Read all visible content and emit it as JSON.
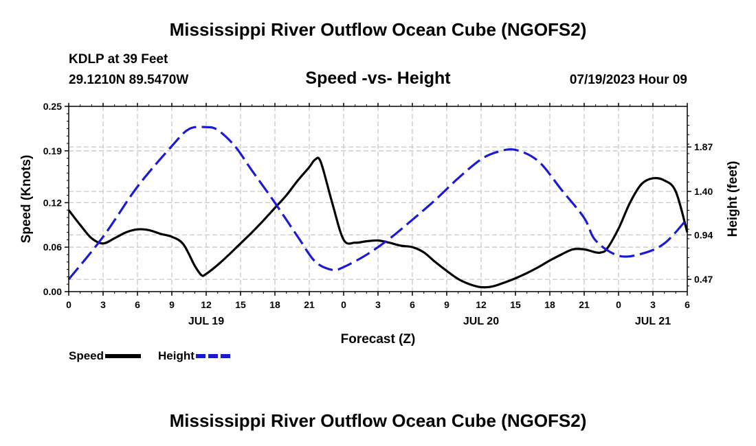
{
  "header": {
    "title": "Mississippi River Outflow Ocean Cube (NGOFS2)",
    "station": "KDLP at 39 Feet",
    "coords": "29.1210N  89.5470W",
    "subtitle": "Speed -vs- Height",
    "datetime": "07/19/2023 Hour 09"
  },
  "footer": {
    "title": "Mississippi River Outflow Ocean Cube (NGOFS2)"
  },
  "legend": {
    "speed_label": "Speed",
    "height_label": "Height"
  },
  "colors": {
    "speed": "#000000",
    "height": "#1a1ad6",
    "grid": "#c8c8c8"
  },
  "chart_data": {
    "type": "line",
    "xlabel": "Forecast (Z)",
    "ylabel_left": "Speed (Knots)",
    "ylabel_right": "Height (feet)",
    "grid": true,
    "xlim": [
      0,
      54
    ],
    "x_tick_values": [
      0,
      3,
      6,
      9,
      12,
      15,
      18,
      21,
      24,
      27,
      30,
      33,
      36,
      39,
      42,
      45,
      48,
      51,
      54
    ],
    "x_tick_labels": [
      "0",
      "3",
      "6",
      "9",
      "12",
      "15",
      "18",
      "21",
      "0",
      "3",
      "6",
      "9",
      "12",
      "15",
      "18",
      "21",
      "0",
      "3",
      "6"
    ],
    "day_labels": [
      {
        "x": 12,
        "label": "JUL 19"
      },
      {
        "x": 36,
        "label": "JUL 20"
      },
      {
        "x": 51,
        "label": "JUL 21"
      }
    ],
    "ylim_left": [
      0,
      0.25
    ],
    "y_left_ticks": [
      0.0,
      0.06,
      0.12,
      0.19,
      0.25
    ],
    "y_left_tick_labels": [
      "0.00",
      "0.06",
      "0.12",
      "0.19",
      "0.25"
    ],
    "ylim_right": [
      0.34,
      2.3
    ],
    "y_right_ticks": [
      0.47,
      0.94,
      1.4,
      1.87
    ],
    "y_right_tick_labels": [
      "0.47",
      "0.94",
      "1.40",
      "1.87"
    ],
    "series": [
      {
        "name": "Speed",
        "axis": "left",
        "style": "solid",
        "x": [
          0,
          1,
          2,
          3,
          4,
          5,
          6,
          7,
          8,
          9,
          10,
          11,
          11.6,
          12,
          13,
          14,
          15,
          16,
          17,
          18,
          19,
          20,
          21,
          21.5,
          22,
          23,
          24,
          25,
          26,
          27,
          28,
          29,
          30,
          31,
          32,
          33,
          34,
          35,
          36,
          37,
          38,
          39,
          40,
          41,
          42,
          43,
          44,
          45,
          46,
          46.5,
          47,
          48,
          49,
          50,
          51,
          52,
          53,
          54
        ],
        "values": [
          0.11,
          0.09,
          0.072,
          0.065,
          0.072,
          0.08,
          0.084,
          0.083,
          0.078,
          0.074,
          0.064,
          0.035,
          0.022,
          0.024,
          0.036,
          0.05,
          0.065,
          0.08,
          0.096,
          0.113,
          0.13,
          0.15,
          0.168,
          0.178,
          0.175,
          0.12,
          0.07,
          0.066,
          0.068,
          0.069,
          0.066,
          0.062,
          0.06,
          0.053,
          0.04,
          0.028,
          0.017,
          0.01,
          0.006,
          0.007,
          0.012,
          0.018,
          0.025,
          0.033,
          0.042,
          0.05,
          0.057,
          0.057,
          0.053,
          0.053,
          0.058,
          0.085,
          0.12,
          0.145,
          0.153,
          0.15,
          0.135,
          0.08
        ]
      },
      {
        "name": "Height",
        "axis": "right",
        "style": "dashed",
        "x": [
          0,
          3,
          6,
          9,
          10.5,
          12,
          13,
          14.5,
          16,
          18,
          20,
          21.5,
          23,
          24,
          26,
          28,
          30,
          32,
          34,
          36,
          37.5,
          39,
          41,
          43,
          45,
          46,
          48,
          50,
          52,
          54
        ],
        "values": [
          0.47,
          0.92,
          1.45,
          1.88,
          2.06,
          2.08,
          2.05,
          1.88,
          1.62,
          1.28,
          0.92,
          0.66,
          0.57,
          0.6,
          0.73,
          0.9,
          1.1,
          1.31,
          1.54,
          1.74,
          1.82,
          1.84,
          1.72,
          1.42,
          1.12,
          0.88,
          0.72,
          0.74,
          0.85,
          1.11
        ]
      }
    ]
  }
}
